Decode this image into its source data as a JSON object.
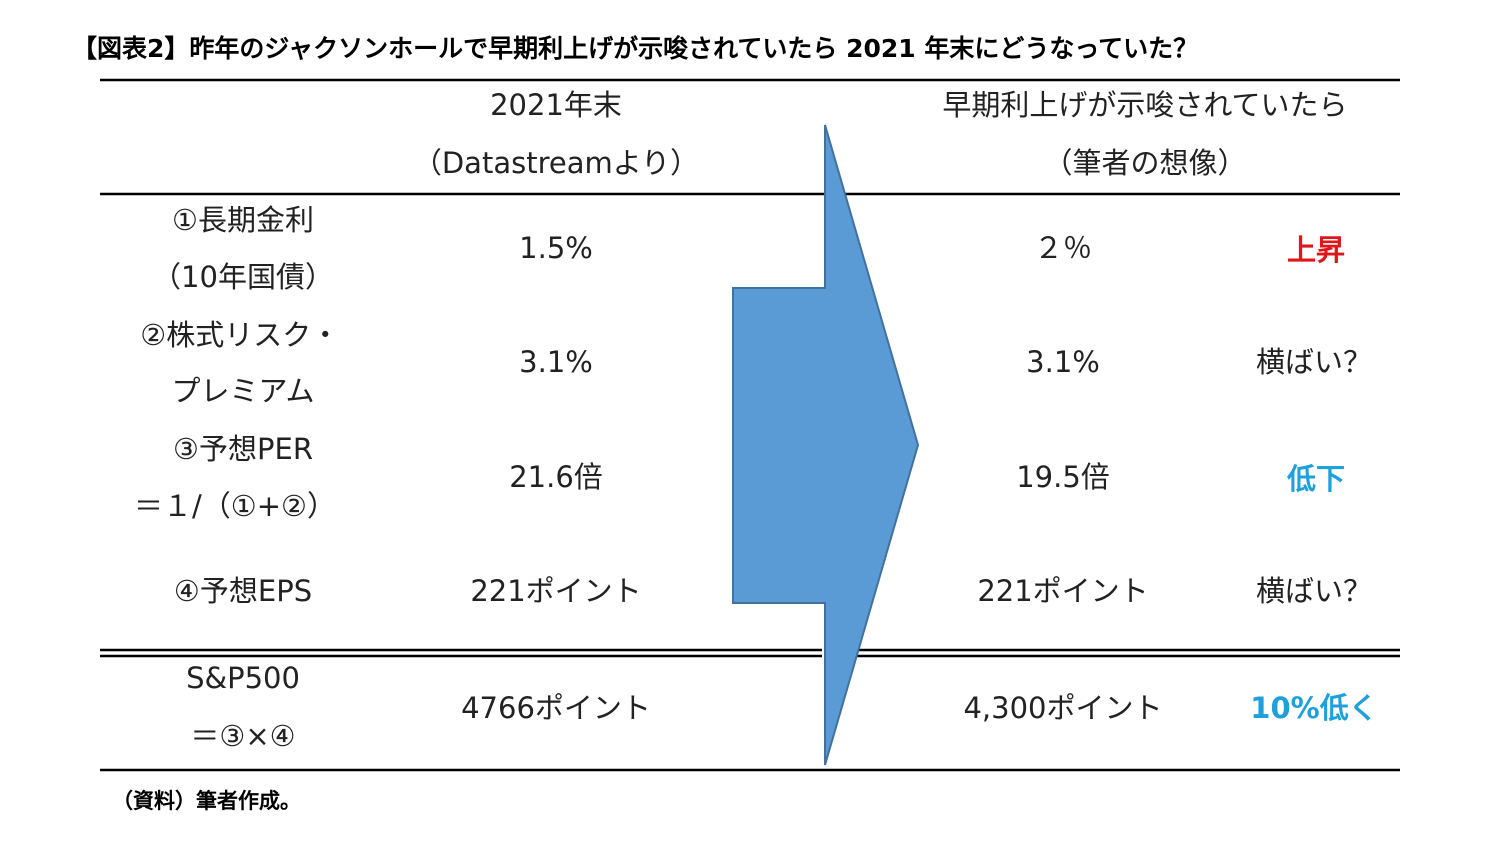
{
  "title": "【図表2】昨年のジャクソンホールで早期利上げが示唆されていたら 2021 年末にどうなっていた？",
  "columns": [
    {
      "lines": [
        "2021年末",
        "（Datastreamより）"
      ]
    },
    {
      "lines": [
        "早期利上げが示唆されていたら",
        "（筆者の想像）"
      ]
    }
  ],
  "rows": [
    {
      "label": [
        "①長期金利",
        "（10年国債）"
      ],
      "actual": "1.5%",
      "scenario": "２％",
      "change": "上昇"
    },
    {
      "label": [
        "②株式リスク・",
        "プレミアム"
      ],
      "actual": "3.1%",
      "scenario": "3.1%",
      "change": "横ばい？"
    },
    {
      "label": [
        "③予想PER",
        "＝１/（①+②）"
      ],
      "actual": "21.6倍",
      "scenario": "19.5倍",
      "change": "低下"
    },
    {
      "label": [
        "④予想EPS"
      ],
      "actual": "221ポイント",
      "scenario": "221ポイント",
      "change": "横ばい？"
    }
  ],
  "total": {
    "label": [
      "S&P500",
      "＝③×④"
    ],
    "actual": "4766ポイント",
    "scenario": "4,300ポイント",
    "change": "10%低く"
  },
  "note": "（資料）筆者作成。"
}
